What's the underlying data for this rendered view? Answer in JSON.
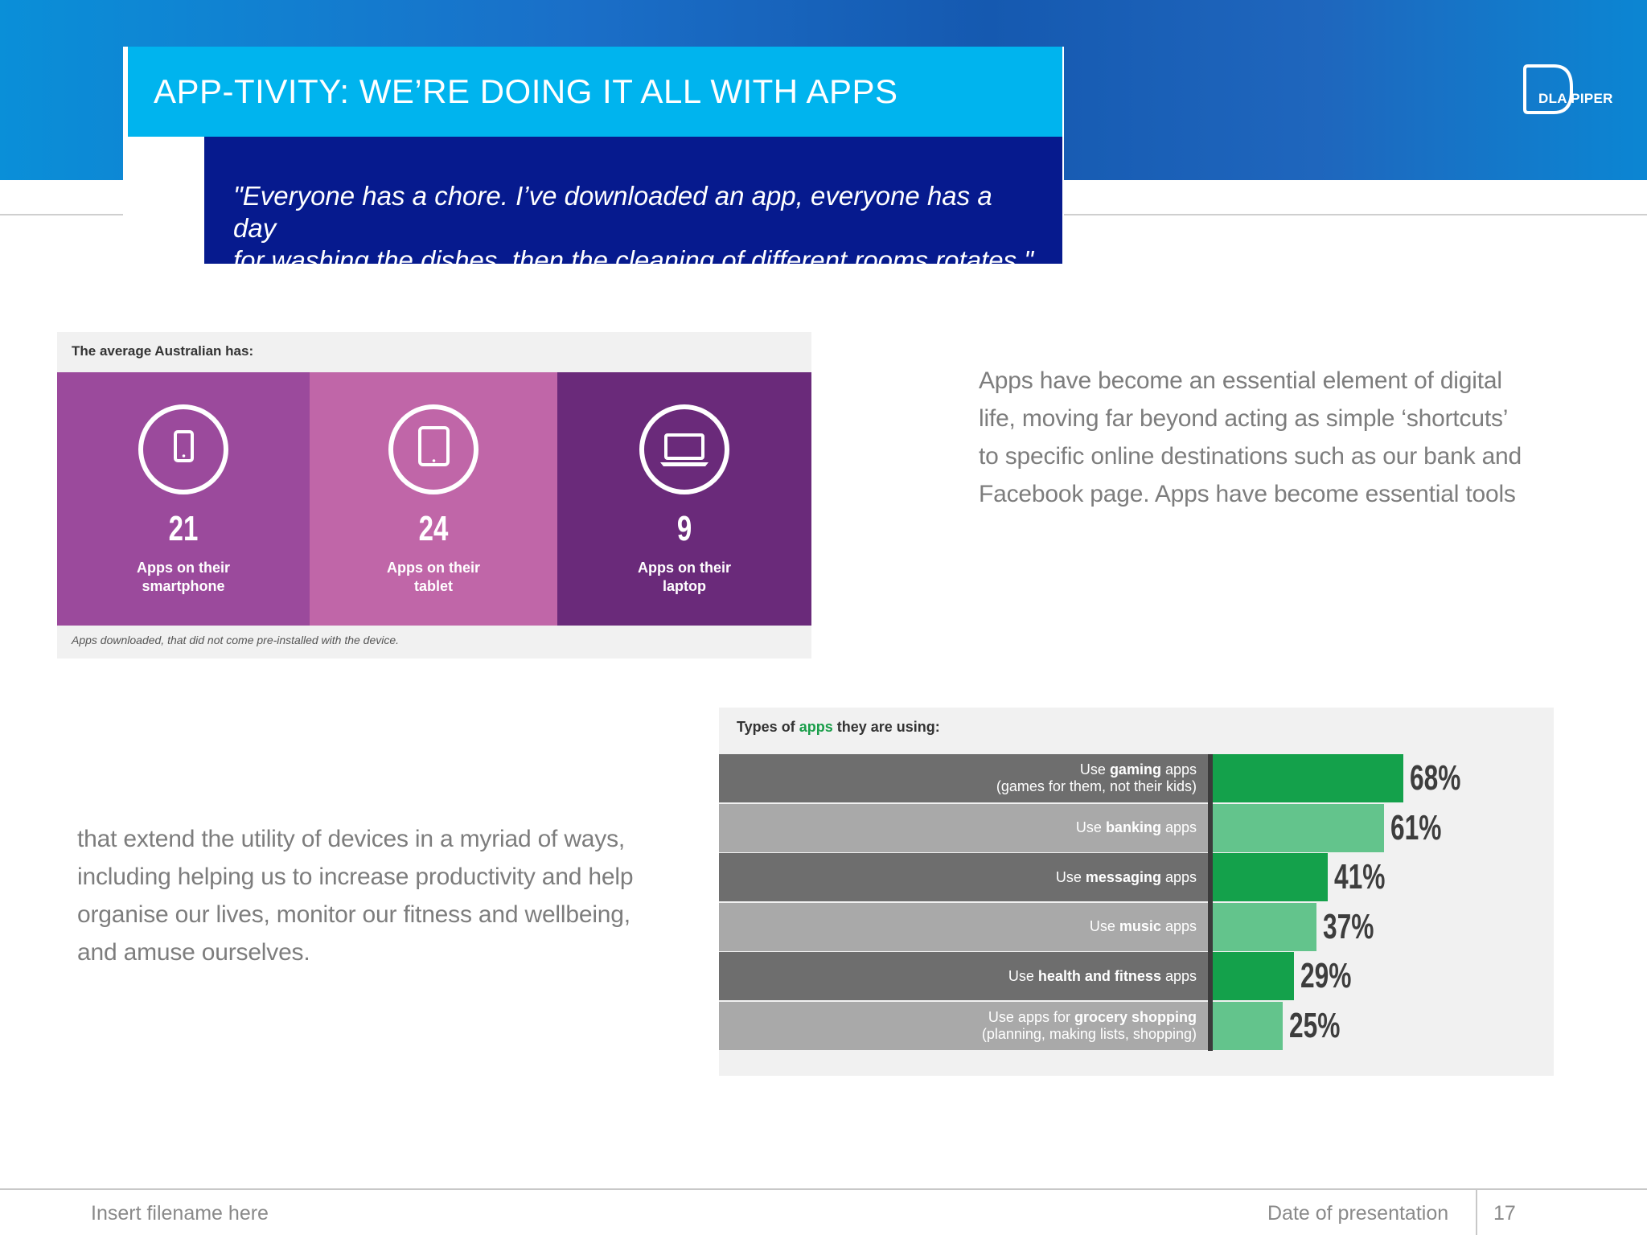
{
  "header": {
    "title": "APP-TIVITY: WE’RE DOING IT ALL WITH APPS",
    "quote_line1": "\"Everyone has a chore. I’ve downloaded an app, everyone has a day",
    "quote_line2": "for washing the dishes, then the cleaning of different rooms rotates.\"",
    "logo_text": "DLA PIPER",
    "colors": {
      "title_bg": "#00b4ee",
      "quote_bg": "#061a8e"
    }
  },
  "infographic": {
    "heading": "The average Australian has:",
    "footnote": "Apps downloaded, that did not come pre-installed with the device.",
    "panels": [
      {
        "value": "21",
        "label_line1": "Apps on their",
        "label_line2": "smartphone",
        "icon": "smartphone-icon",
        "color": "#9b4a9c"
      },
      {
        "value": "24",
        "label_line1": "Apps on their",
        "label_line2": "tablet",
        "icon": "tablet-icon",
        "color": "#c066a8"
      },
      {
        "value": "9",
        "label_line1": "Apps on their",
        "label_line2": "laptop",
        "icon": "laptop-icon",
        "color": "#6a2a7a"
      }
    ]
  },
  "text_right": [
    "Apps have become an essential element of digital",
    "life, moving far beyond acting as simple ‘shortcuts’",
    "to specific online destinations such as our bank and",
    "Facebook page. Apps have become essential tools"
  ],
  "text_left": [
    "that extend the utility of devices in a myriad of ways,",
    "including helping us to increase productivity and help",
    "organise our lives, monitor our fitness and wellbeing,",
    "and amuse ourselves."
  ],
  "chart_data": {
    "type": "bar",
    "orientation": "horizontal",
    "title_prefix": "Types of ",
    "title_highlight": "apps",
    "title_suffix": " they are using:",
    "xlim": [
      0,
      100
    ],
    "categories": [
      {
        "pre": "Use ",
        "bold": "gaming",
        "post": " apps",
        "line2": "(games for them, not their kids)"
      },
      {
        "pre": "Use ",
        "bold": "banking",
        "post": " apps",
        "line2": ""
      },
      {
        "pre": "Use ",
        "bold": "messaging",
        "post": " apps",
        "line2": ""
      },
      {
        "pre": "Use ",
        "bold": "music",
        "post": " apps",
        "line2": ""
      },
      {
        "pre": "Use ",
        "bold": "health and fitness",
        "post": " apps",
        "line2": ""
      },
      {
        "pre": "Use apps for ",
        "bold": "grocery shopping",
        "post": "",
        "line2": "(planning, making lists, shopping)"
      }
    ],
    "values": [
      68,
      61,
      41,
      37,
      29,
      25
    ],
    "labels": [
      "68%",
      "61%",
      "41%",
      "37%",
      "29%",
      "25%"
    ],
    "bar_colors": [
      "#14a14b",
      "#63c48c",
      "#14a14b",
      "#63c48c",
      "#14a14b",
      "#63c48c"
    ],
    "row_colors": [
      "#6e6e6e",
      "#a9a9a9",
      "#6e6e6e",
      "#a9a9a9",
      "#6e6e6e",
      "#a9a9a9"
    ]
  },
  "footer": {
    "filename": "Insert filename here",
    "date": "Date of presentation",
    "page": "17"
  }
}
